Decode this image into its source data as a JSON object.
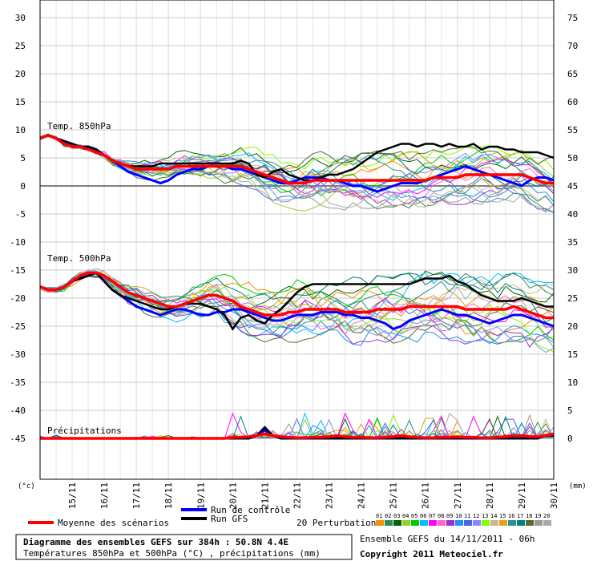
{
  "chart_data": {
    "type": "line",
    "title": "Diagramme des ensembles GEFS sur 384h : 50.8N 4.4E",
    "subtitle": "Températures 850hPa et 500hPa (°C) , précipitations (mm)",
    "run_info": "Ensemble GEFS du 14/11/2011 - 06h",
    "copyright": "Copyright 2011 Meteociel.fr",
    "left_axis_unit": "(°c)",
    "right_axis_unit": "(mm)",
    "left_ticks": [
      30,
      25,
      20,
      15,
      10,
      5,
      0,
      -5,
      -10,
      -15,
      -20,
      -25,
      -30,
      -35,
      -40,
      -45
    ],
    "right_ticks": [
      75,
      70,
      65,
      60,
      55,
      50,
      45,
      40,
      35,
      30,
      25,
      20,
      15,
      10,
      5,
      0
    ],
    "x_labels": [
      "15/11",
      "16/11",
      "17/11",
      "18/11",
      "19/11",
      "20/11",
      "21/11",
      "22/11",
      "23/11",
      "24/11",
      "25/11",
      "26/11",
      "27/11",
      "28/11",
      "29/11",
      "30/11"
    ],
    "panel_labels": {
      "t850": "Temp. 850hPa",
      "t500": "Temp. 500hPa",
      "precip": "Précipitations"
    },
    "legend": {
      "control": "Run de contrôle",
      "gfs": "Run GFS",
      "mean": "Moyenne des scénarios",
      "perturbations": "20 Perturbations",
      "perturbation_ids": [
        "01",
        "02",
        "03",
        "04",
        "05",
        "06",
        "07",
        "08",
        "09",
        "10",
        "11",
        "12",
        "13",
        "14",
        "15",
        "16",
        "17",
        "18",
        "19",
        "20"
      ]
    },
    "colors": {
      "control": "#0000ff",
      "gfs": "#000000",
      "mean": "#ff0000",
      "perturbations": [
        "#ff8c00",
        "#2e8b57",
        "#006400",
        "#9acd32",
        "#00cc00",
        "#00bfff",
        "#ff00ff",
        "#ff66cc",
        "#9932cc",
        "#1e90ff",
        "#4169e1",
        "#8888ff",
        "#7fff00",
        "#d2b48c",
        "#daa520",
        "#2f8f8f",
        "#008080",
        "#556b2f",
        "#999999",
        "#aaaaaa"
      ]
    },
    "grid": true,
    "t850": {
      "control": [
        8.5,
        9.0,
        8.5,
        8.0,
        7.5,
        7.0,
        7.0,
        6.5,
        5.5,
        4.5,
        3.5,
        2.5,
        2.0,
        1.5,
        1.0,
        0.5,
        1.0,
        2.0,
        2.5,
        3.0,
        3.0,
        3.5,
        3.5,
        3.5,
        3.0,
        3.0,
        2.5,
        2.0,
        1.5,
        1.0,
        0.5,
        0.5,
        1.0,
        1.5,
        1.5,
        1.5,
        1.0,
        1.0,
        0.5,
        0.0,
        0.0,
        -0.5,
        -1.0,
        -0.5,
        0.0,
        0.5,
        0.5,
        0.5,
        1.0,
        1.5,
        2.0,
        2.5,
        3.0,
        3.5,
        3.0,
        2.5,
        2.0,
        1.5,
        1.0,
        0.5,
        0.0,
        1.0,
        1.5,
        1.5,
        1.0
      ],
      "gfs": [
        8.5,
        9.0,
        8.5,
        8.0,
        7.5,
        7.0,
        7.0,
        6.5,
        5.5,
        4.5,
        4.0,
        3.5,
        3.5,
        3.5,
        3.5,
        4.0,
        4.0,
        4.0,
        4.0,
        4.0,
        4.0,
        4.0,
        4.0,
        4.0,
        4.0,
        4.5,
        4.0,
        2.0,
        1.5,
        2.5,
        3.0,
        2.0,
        1.5,
        1.0,
        1.0,
        1.5,
        2.0,
        2.0,
        2.5,
        3.0,
        4.0,
        5.0,
        6.0,
        6.5,
        7.0,
        7.5,
        7.5,
        7.0,
        7.5,
        7.5,
        7.0,
        7.5,
        7.0,
        7.0,
        7.5,
        6.5,
        7.0,
        7.0,
        6.5,
        6.5,
        6.0,
        6.0,
        6.0,
        5.5,
        5.0
      ],
      "mean": [
        8.5,
        9.0,
        8.5,
        7.5,
        7.0,
        7.0,
        6.5,
        6.0,
        5.5,
        4.5,
        4.0,
        3.5,
        3.0,
        3.0,
        3.0,
        3.0,
        3.0,
        3.5,
        3.5,
        3.5,
        3.5,
        3.5,
        3.5,
        3.5,
        3.5,
        3.5,
        3.0,
        2.5,
        2.0,
        1.5,
        1.0,
        0.5,
        0.5,
        0.5,
        1.0,
        1.0,
        1.0,
        1.0,
        1.0,
        1.0,
        1.0,
        1.0,
        1.0,
        1.0,
        1.0,
        1.0,
        1.0,
        1.0,
        1.0,
        1.5,
        1.5,
        1.5,
        1.5,
        2.0,
        2.0,
        2.0,
        2.0,
        2.0,
        2.0,
        2.0,
        2.0,
        1.5,
        1.0,
        0.5,
        0.5
      ]
    },
    "t500": {
      "control": [
        -18.0,
        -18.5,
        -18.5,
        -18.0,
        -17.0,
        -16.5,
        -16.0,
        -15.5,
        -17.0,
        -18.5,
        -19.5,
        -20.5,
        -21.5,
        -22.0,
        -22.5,
        -23.0,
        -22.5,
        -22.0,
        -22.0,
        -22.5,
        -23.0,
        -23.0,
        -22.5,
        -22.5,
        -22.0,
        -22.0,
        -22.5,
        -23.0,
        -23.5,
        -24.0,
        -24.0,
        -23.5,
        -23.0,
        -23.0,
        -23.0,
        -22.5,
        -22.5,
        -22.5,
        -23.0,
        -23.0,
        -23.5,
        -23.5,
        -24.0,
        -24.5,
        -25.5,
        -25.0,
        -24.0,
        -23.5,
        -23.0,
        -22.5,
        -22.0,
        -22.5,
        -23.0,
        -23.0,
        -23.5,
        -24.0,
        -24.5,
        -24.0,
        -23.5,
        -23.0,
        -23.0,
        -23.5,
        -24.0,
        -24.5,
        -25.0
      ],
      "gfs": [
        -18.0,
        -18.5,
        -18.5,
        -18.0,
        -17.0,
        -16.5,
        -16.0,
        -15.5,
        -17.0,
        -18.5,
        -19.5,
        -20.0,
        -20.5,
        -21.0,
        -21.5,
        -22.0,
        -22.0,
        -21.5,
        -21.0,
        -21.0,
        -21.0,
        -21.5,
        -22.0,
        -23.0,
        -25.5,
        -23.5,
        -23.0,
        -24.0,
        -24.5,
        -23.0,
        -22.0,
        -20.5,
        -19.0,
        -18.0,
        -17.5,
        -17.5,
        -17.5,
        -17.5,
        -17.5,
        -17.5,
        -17.5,
        -17.5,
        -17.5,
        -17.5,
        -17.5,
        -17.5,
        -17.5,
        -17.0,
        -16.5,
        -16.5,
        -16.5,
        -16.0,
        -17.0,
        -17.5,
        -18.5,
        -19.5,
        -20.0,
        -20.5,
        -20.5,
        -20.5,
        -20.0,
        -20.5,
        -21.0,
        -21.5,
        -21.5
      ],
      "mean": [
        -18.0,
        -18.5,
        -18.5,
        -18.0,
        -17.0,
        -16.0,
        -15.5,
        -15.5,
        -16.0,
        -17.0,
        -18.0,
        -19.0,
        -19.5,
        -20.0,
        -20.5,
        -21.0,
        -21.5,
        -21.5,
        -21.0,
        -20.5,
        -20.0,
        -19.5,
        -19.5,
        -20.0,
        -20.5,
        -21.5,
        -22.0,
        -22.5,
        -23.0,
        -23.0,
        -23.0,
        -22.5,
        -22.5,
        -22.0,
        -22.0,
        -22.0,
        -22.0,
        -22.0,
        -22.5,
        -22.5,
        -22.5,
        -22.5,
        -22.0,
        -22.0,
        -22.0,
        -22.0,
        -21.5,
        -21.5,
        -21.5,
        -21.5,
        -21.5,
        -21.5,
        -21.5,
        -22.0,
        -22.0,
        -22.0,
        -22.0,
        -22.0,
        -22.0,
        -21.5,
        -22.0,
        -22.5,
        -23.0,
        -23.5,
        -23.5
      ]
    },
    "precip": {
      "control": [
        0,
        0,
        0,
        0,
        0,
        0,
        0,
        0,
        0,
        0,
        0,
        0,
        0,
        0,
        0,
        0,
        0,
        0,
        0,
        0,
        0,
        0,
        0,
        0,
        0,
        0,
        0,
        0.5,
        1.5,
        0.5,
        0,
        0,
        0,
        0,
        0,
        0,
        0,
        0,
        0,
        0,
        0,
        0,
        0,
        0,
        0,
        0,
        0,
        0,
        0,
        0,
        0,
        0,
        0,
        0,
        0,
        0,
        0,
        0,
        0,
        0,
        0,
        0,
        0,
        0.5,
        0.5
      ],
      "gfs": [
        0,
        0,
        0,
        0,
        0,
        0,
        0,
        0,
        0,
        0,
        0,
        0,
        0,
        0,
        0,
        0,
        0,
        0,
        0,
        0,
        0,
        0,
        0,
        0,
        0,
        0,
        0,
        0.5,
        2.0,
        0.5,
        0,
        0,
        0,
        0,
        0,
        0,
        0,
        0,
        0,
        0,
        0,
        0,
        0,
        0,
        0,
        0,
        0,
        0,
        0,
        0,
        0,
        0,
        0,
        0,
        0,
        0,
        0,
        0,
        0,
        0,
        0,
        0,
        0,
        0.5,
        0.5
      ],
      "mean": [
        0,
        0,
        0,
        0,
        0,
        0,
        0,
        0,
        0,
        0,
        0,
        0,
        0,
        0,
        0,
        0,
        0,
        0,
        0,
        0,
        0,
        0,
        0,
        0,
        0.2,
        0.2,
        0.3,
        0.5,
        0.8,
        0.5,
        0.3,
        0.2,
        0.1,
        0.1,
        0.2,
        0.2,
        0.3,
        0.5,
        0.3,
        0.2,
        0.2,
        0.1,
        0.1,
        0.2,
        0.3,
        0.5,
        0.3,
        0.2,
        0.1,
        0.1,
        0.2,
        0.2,
        0.3,
        0.2,
        0.2,
        0.1,
        0.1,
        0.2,
        0.3,
        0.5,
        0.5,
        0.3,
        0.3,
        0.5,
        0.8
      ]
    }
  }
}
